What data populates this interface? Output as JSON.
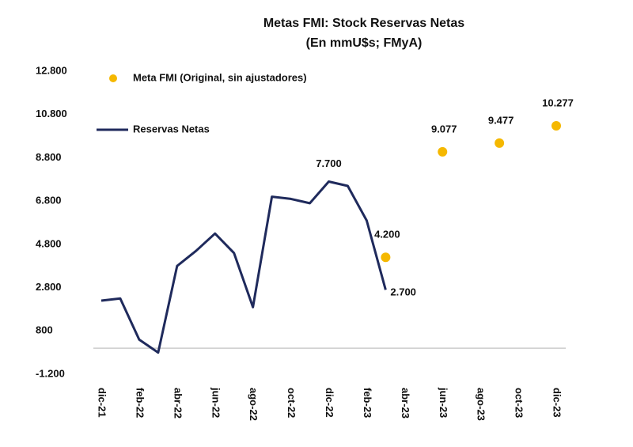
{
  "chart_data": {
    "type": "line",
    "title": "Metas FMI: Stock Reservas Netas",
    "subtitle": "(En mmU$s; FMyA)",
    "categories": [
      "dic-21",
      null,
      "feb-22",
      null,
      "abr-22",
      null,
      "jun-22",
      null,
      "ago-22",
      null,
      "oct-22",
      null,
      "dic-22",
      null,
      "feb-23",
      null,
      "abr-23",
      null,
      "jun-23",
      null,
      "ago-23",
      null,
      "oct-23",
      null,
      "dic-23"
    ],
    "series": [
      {
        "name": "Reservas Netas",
        "color": "#1f2a5c",
        "style": "line",
        "values": [
          2200,
          2300,
          400,
          -200,
          3800,
          4500,
          5300,
          4400,
          1900,
          7000,
          6900,
          6700,
          7700,
          7500,
          5900,
          2700,
          null,
          null,
          null,
          null,
          null,
          null,
          null,
          null,
          null
        ],
        "value_labels": [
          null,
          null,
          null,
          null,
          null,
          null,
          null,
          null,
          null,
          null,
          null,
          null,
          "7.700",
          null,
          null,
          "2.700",
          null,
          null,
          null,
          null,
          null,
          null,
          null,
          null,
          null
        ]
      },
      {
        "name": "Meta FMI (Original, sin ajustadores)",
        "color": "#f5b800",
        "style": "dot",
        "values": [
          null,
          null,
          null,
          null,
          null,
          null,
          null,
          null,
          null,
          null,
          null,
          null,
          null,
          null,
          null,
          4200,
          null,
          null,
          9077,
          null,
          null,
          9477,
          null,
          null,
          10277
        ],
        "value_labels": [
          null,
          null,
          null,
          null,
          null,
          null,
          null,
          null,
          null,
          null,
          null,
          null,
          null,
          null,
          null,
          "4.200",
          null,
          null,
          "9.077",
          null,
          null,
          "9.477",
          null,
          null,
          "10.277"
        ]
      }
    ],
    "ylim": [
      -1200,
      12800
    ],
    "yticks": [
      {
        "value": -1200,
        "label": "-1.200"
      },
      {
        "value": 800,
        "label": "800"
      },
      {
        "value": 2800,
        "label": "2.800"
      },
      {
        "value": 4800,
        "label": "4.800"
      },
      {
        "value": 6800,
        "label": "6.800"
      },
      {
        "value": 8800,
        "label": "8.800"
      },
      {
        "value": 10800,
        "label": "10.800"
      },
      {
        "value": 12800,
        "label": "12.800"
      }
    ],
    "grid": false
  }
}
